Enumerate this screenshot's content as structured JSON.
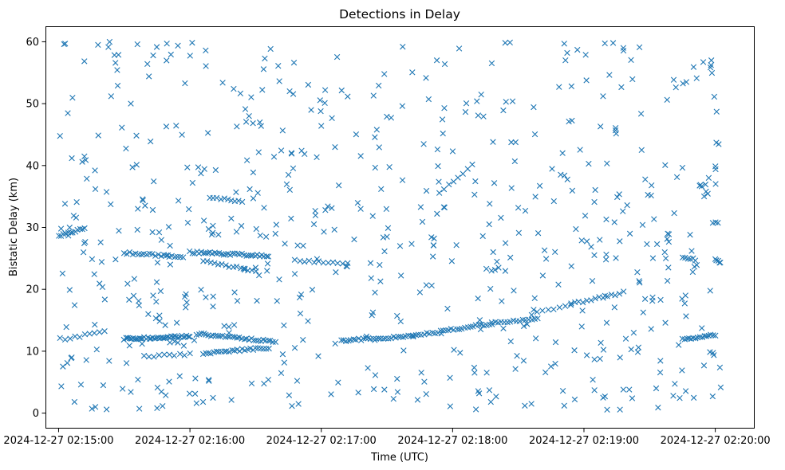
{
  "chart_data": {
    "type": "scatter",
    "title": "Detections in Delay",
    "xlabel": "Time (UTC)",
    "ylabel": "Bistatic Delay (km)",
    "marker": "x",
    "color": "#1f77b4",
    "grid": false,
    "xlim": [
      -0.1,
      5.3
    ],
    "ylim": [
      -2.5,
      62.5
    ],
    "x_unit": "minutes after 2024-12-27 02:15:00",
    "x_ticks": [
      {
        "value": 0,
        "label": "2024-12-27 02:15:00"
      },
      {
        "value": 1,
        "label": "2024-12-27 02:16:00"
      },
      {
        "value": 2,
        "label": "2024-12-27 02:17:00"
      },
      {
        "value": 3,
        "label": "2024-12-27 02:18:00"
      },
      {
        "value": 4,
        "label": "2024-12-27 02:19:00"
      },
      {
        "value": 5,
        "label": "2024-12-27 02:20:00"
      }
    ],
    "y_ticks": [
      {
        "value": 0,
        "label": "0"
      },
      {
        "value": 10,
        "label": "10"
      },
      {
        "value": 20,
        "label": "20"
      },
      {
        "value": 30,
        "label": "30"
      },
      {
        "value": 40,
        "label": "40"
      },
      {
        "value": 50,
        "label": "50"
      },
      {
        "value": 60,
        "label": "60"
      }
    ],
    "series": [
      {
        "name": "Detections",
        "tracks": [
          {
            "x_start": 0.0,
            "x_end": 0.2,
            "y_start": 28.5,
            "y_end": 30.0,
            "count": 12
          },
          {
            "x_start": 0.05,
            "x_end": 0.35,
            "y_start": 12.0,
            "y_end": 13.2,
            "count": 9
          },
          {
            "x_start": 0.5,
            "x_end": 1.0,
            "y_start": 12.0,
            "y_end": 12.4,
            "count": 40
          },
          {
            "x_start": 0.5,
            "x_end": 0.95,
            "y_start": 25.9,
            "y_end": 25.2,
            "count": 22
          },
          {
            "x_start": 1.0,
            "x_end": 1.6,
            "y_start": 26.0,
            "y_end": 25.4,
            "count": 36
          },
          {
            "x_start": 1.1,
            "x_end": 1.5,
            "y_start": 24.5,
            "y_end": 23.0,
            "count": 15
          },
          {
            "x_start": 1.05,
            "x_end": 1.65,
            "y_start": 12.8,
            "y_end": 11.5,
            "count": 34
          },
          {
            "x_start": 1.1,
            "x_end": 1.6,
            "y_start": 9.6,
            "y_end": 10.6,
            "count": 26
          },
          {
            "x_start": 1.15,
            "x_end": 1.4,
            "y_start": 34.8,
            "y_end": 34.2,
            "count": 10
          },
          {
            "x_start": 0.65,
            "x_end": 1.0,
            "y_start": 9.2,
            "y_end": 9.5,
            "count": 10
          },
          {
            "x_start": 1.8,
            "x_end": 2.2,
            "y_start": 24.6,
            "y_end": 24.2,
            "count": 12
          },
          {
            "x_start": 2.15,
            "x_end": 2.7,
            "y_start": 11.7,
            "y_end": 12.5,
            "count": 30
          },
          {
            "x_start": 2.7,
            "x_end": 3.3,
            "y_start": 12.5,
            "y_end": 14.5,
            "count": 30
          },
          {
            "x_start": 3.3,
            "x_end": 3.65,
            "y_start": 14.5,
            "y_end": 15.3,
            "count": 16
          },
          {
            "x_start": 3.6,
            "x_end": 3.9,
            "y_start": 16.0,
            "y_end": 17.5,
            "count": 8
          },
          {
            "x_start": 3.9,
            "x_end": 4.3,
            "y_start": 17.6,
            "y_end": 19.5,
            "count": 14
          },
          {
            "x_start": 2.9,
            "x_end": 3.15,
            "y_start": 35.5,
            "y_end": 40.0,
            "count": 8
          },
          {
            "x_start": 4.75,
            "x_end": 5.0,
            "y_start": 12.0,
            "y_end": 12.6,
            "count": 16
          },
          {
            "x_start": 4.75,
            "x_end": 4.85,
            "y_start": 25.0,
            "y_end": 24.8,
            "count": 6
          },
          {
            "x_start": 4.98,
            "x_end": 5.02,
            "y_start": 30.8,
            "y_end": 30.8,
            "count": 3
          },
          {
            "x_start": 5.0,
            "x_end": 5.04,
            "y_start": 24.8,
            "y_end": 24.2,
            "count": 5
          }
        ],
        "scatter": {
          "x_range": [
            0.0,
            5.05
          ],
          "y_range": [
            0.5,
            60.0
          ],
          "count": 560,
          "seed": 20241227
        },
        "points": [
          [
            0.05,
            59.7
          ],
          [
            0.3,
            59.5
          ],
          [
            0.6,
            59.6
          ],
          [
            0.1,
            9.0
          ],
          [
            0.17,
            4.6
          ],
          [
            0.28,
            1.0
          ],
          [
            0.34,
            4.5
          ],
          [
            0.28,
            36.2
          ],
          [
            0.75,
            0.8
          ],
          [
            0.72,
            57.8
          ],
          [
            0.82,
            46.3
          ],
          [
            1.12,
            58.6
          ],
          [
            2.62,
            59.2
          ],
          [
            3.05,
            58.9
          ],
          [
            3.95,
            58.7
          ],
          [
            4.3,
            59.0
          ],
          [
            3.85,
            59.7
          ],
          [
            2.88,
            57.0
          ],
          [
            1.57,
            57.3
          ],
          [
            0.18,
            40.6
          ],
          [
            0.32,
            27.6
          ],
          [
            1.45,
            48.0
          ],
          [
            1.05,
            1.6
          ],
          [
            1.1,
            1.8
          ],
          [
            1.47,
            4.8
          ],
          [
            2.0,
            46.4
          ],
          [
            2.05,
            33.4
          ],
          [
            2.55,
            2.3
          ],
          [
            2.98,
            5.7
          ],
          [
            3.28,
            3.7
          ],
          [
            3.55,
            1.2
          ],
          [
            3.6,
            1.5
          ],
          [
            3.85,
            1.2
          ],
          [
            3.93,
            2.2
          ],
          [
            4.08,
            3.7
          ],
          [
            4.3,
            3.8
          ],
          [
            4.55,
            4.0
          ],
          [
            4.68,
            2.8
          ],
          [
            4.98,
            2.7
          ],
          [
            4.97,
            57.0
          ],
          [
            4.78,
            53.5
          ],
          [
            5.01,
            48.7
          ],
          [
            4.95,
            38.0
          ],
          [
            4.93,
            35.8
          ],
          [
            4.82,
            26.2
          ],
          [
            4.35,
            29.0
          ],
          [
            4.17,
            31.3
          ],
          [
            3.7,
            26.3
          ],
          [
            3.23,
            28.6
          ],
          [
            2.85,
            25.3
          ],
          [
            2.5,
            28.5
          ],
          [
            2.6,
            27.0
          ],
          [
            2.02,
            29.3
          ],
          [
            1.82,
            27.1
          ],
          [
            0.98,
            39.7
          ],
          [
            0.55,
            50.0
          ],
          [
            0.45,
            52.9
          ],
          [
            0.4,
            51.2
          ],
          [
            0.85,
            24.0
          ],
          [
            0.9,
            14.6
          ],
          [
            1.5,
            23.5
          ],
          [
            1.75,
            38.5
          ],
          [
            1.85,
            42.4
          ],
          [
            2.38,
            21.8
          ],
          [
            2.3,
            33.0
          ],
          [
            3.35,
            23.5
          ]
        ]
      }
    ]
  }
}
